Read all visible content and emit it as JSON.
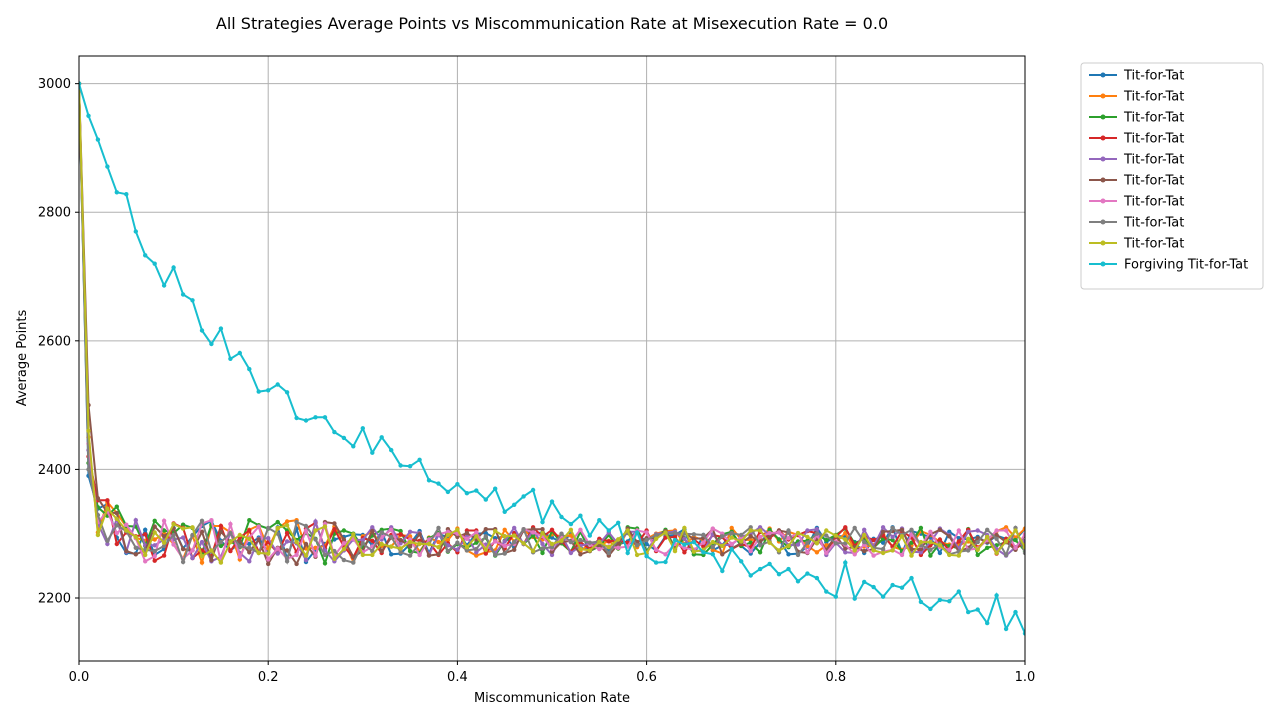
{
  "chart_data": {
    "type": "line",
    "title": "All Strategies Average Points vs Miscommunication Rate at Misexecution Rate = 0.0",
    "xlabel": "Miscommunication Rate",
    "ylabel": "Average Points",
    "xlim": [
      0.0,
      1.0
    ],
    "ylim": [
      2102,
      3043
    ],
    "xticks": [
      "0.0",
      "0.2",
      "0.4",
      "0.6",
      "0.8",
      "1.0"
    ],
    "yticks": [
      "2200",
      "2400",
      "2600",
      "2800",
      "3000"
    ],
    "grid": true,
    "legend_position": "outside-right-top",
    "colors": [
      "#1f77b4",
      "#ff7f0e",
      "#2ca02c",
      "#d62728",
      "#9467bd",
      "#8c564b",
      "#e377c2",
      "#7f7f7f",
      "#bcbd22",
      "#17becf"
    ],
    "series_names": [
      "Tit-for-Tat",
      "Tit-for-Tat",
      "Tit-for-Tat",
      "Tit-for-Tat",
      "Tit-for-Tat",
      "Tit-for-Tat",
      "Tit-for-Tat",
      "Tit-for-Tat",
      "Tit-for-Tat",
      "Forgiving Tit-for-Tat"
    ],
    "x": [
      0.0,
      0.01,
      0.02,
      0.03,
      0.04,
      0.05,
      0.06,
      0.07,
      0.08,
      0.09,
      0.1,
      0.11,
      0.12,
      0.13,
      0.14,
      0.15,
      0.16,
      0.17,
      0.18,
      0.19,
      0.2,
      0.21,
      0.22,
      0.23,
      0.24,
      0.25,
      0.26,
      0.27,
      0.28,
      0.29,
      0.3,
      0.31,
      0.32,
      0.33,
      0.34,
      0.35,
      0.36,
      0.37,
      0.38,
      0.39,
      0.4,
      0.41,
      0.42,
      0.43,
      0.44,
      0.45,
      0.46,
      0.47,
      0.48,
      0.49,
      0.5,
      0.51,
      0.52,
      0.53,
      0.54,
      0.55,
      0.56,
      0.57,
      0.58,
      0.59,
      0.6,
      0.61,
      0.62,
      0.63,
      0.64,
      0.65,
      0.66,
      0.67,
      0.68,
      0.69,
      0.7,
      0.71,
      0.72,
      0.73,
      0.74,
      0.75,
      0.76,
      0.77,
      0.78,
      0.79,
      0.8,
      0.81,
      0.82,
      0.83,
      0.84,
      0.85,
      0.86,
      0.87,
      0.88,
      0.89,
      0.9,
      0.91,
      0.92,
      0.93,
      0.94,
      0.95,
      0.96,
      0.97,
      0.98,
      0.99,
      1.0
    ],
    "forgiving_values": [
      3000,
      2950,
      2913,
      2871,
      2831,
      2828,
      2770,
      2733,
      2720,
      2686,
      2714,
      2672,
      2663,
      2616,
      2595,
      2619,
      2572,
      2581,
      2556,
      2521,
      2523,
      2532,
      2520,
      2480,
      2476,
      2481,
      2481,
      2458,
      2449,
      2436,
      2464,
      2426,
      2450,
      2430,
      2406,
      2405,
      2415,
      2383,
      2378,
      2365,
      2377,
      2363,
      2367,
      2353,
      2370,
      2334,
      2345,
      2358,
      2368,
      2318,
      2350,
      2326,
      2315,
      2328,
      2297,
      2321,
      2305,
      2317,
      2270,
      2302,
      2265,
      2255,
      2256,
      2290,
      2283,
      2287,
      2271,
      2268,
      2242,
      2276,
      2257,
      2235,
      2245,
      2253,
      2237,
      2245,
      2226,
      2238,
      2231,
      2210,
      2202,
      2255,
      2199,
      2225,
      2217,
      2202,
      2220,
      2216,
      2231,
      2194,
      2183,
      2197,
      2195,
      2210,
      2178,
      2182,
      2161,
      2204,
      2152,
      2178,
      2145
    ],
    "tft_start": 3000,
    "tft_second": [
      2390,
      2450,
      2410,
      2420,
      2430,
      2500,
      2440,
      2400,
      2460
    ],
    "tft_mean": 2288,
    "tft_noise": 22,
    "tft_seed": [
      11,
      23,
      37,
      41,
      53,
      67,
      79,
      83,
      97
    ]
  }
}
